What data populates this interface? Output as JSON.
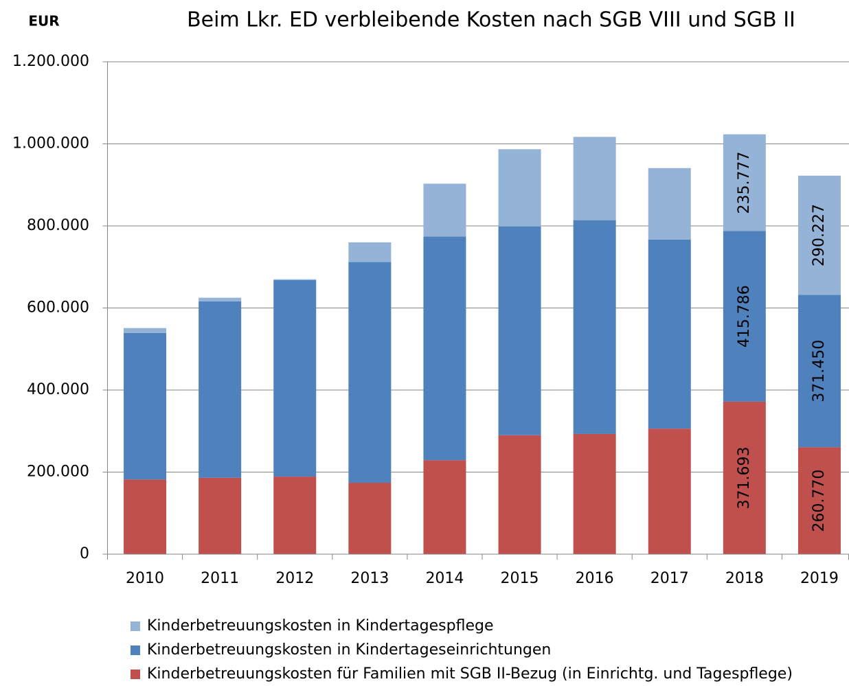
{
  "chart_data": {
    "type": "stacked_bar",
    "title": "Beim Lkr. ED verbleibende Kosten nach SGB VIII  und SGB II",
    "y_label": "EUR",
    "categories": [
      "2010",
      "2011",
      "2012",
      "2013",
      "2014",
      "2015",
      "2016",
      "2017",
      "2018",
      "2019"
    ],
    "series": [
      {
        "name": "Kinderbetreuungskosten für Familien mit SGB II-Bezug (in Einrichtg. und Tagespflege)",
        "color": "#c0504d",
        "values": [
          182000,
          186000,
          189000,
          174000,
          229000,
          290000,
          293000,
          306000,
          371693,
          260770
        ],
        "value_labels": [
          null,
          null,
          null,
          null,
          null,
          null,
          null,
          null,
          "371.693",
          "260.770"
        ]
      },
      {
        "name": "Kinderbetreuungskosten in Kindertageseinrichtungen",
        "color": "#4f81bd",
        "values": [
          357000,
          430000,
          479000,
          538000,
          545000,
          509000,
          521000,
          461000,
          415786,
          371450
        ],
        "value_labels": [
          null,
          null,
          null,
          null,
          null,
          null,
          null,
          null,
          "415.786",
          "371.450"
        ]
      },
      {
        "name": "Kinderbetreuungskosten in Kindertagespflege",
        "color": "#95b3d7",
        "values": [
          12000,
          9000,
          2000,
          48000,
          129000,
          188000,
          203000,
          174000,
          235777,
          290227
        ],
        "value_labels": [
          null,
          null,
          null,
          null,
          null,
          null,
          null,
          null,
          "235.777",
          "290.227"
        ]
      }
    ],
    "ylim": [
      0,
      1200000
    ],
    "yticks": [
      0,
      {
        "value": 200000,
        "label": "200.000"
      },
      {
        "value": 400000,
        "label": "400.000"
      },
      {
        "value": 600000,
        "label": "600.000"
      },
      {
        "value": 800000,
        "label": "800.000"
      },
      {
        "value": 1000000,
        "label": "1.000.000"
      },
      {
        "value": 1200000,
        "label": "1.200.000"
      }
    ],
    "grid": true
  }
}
